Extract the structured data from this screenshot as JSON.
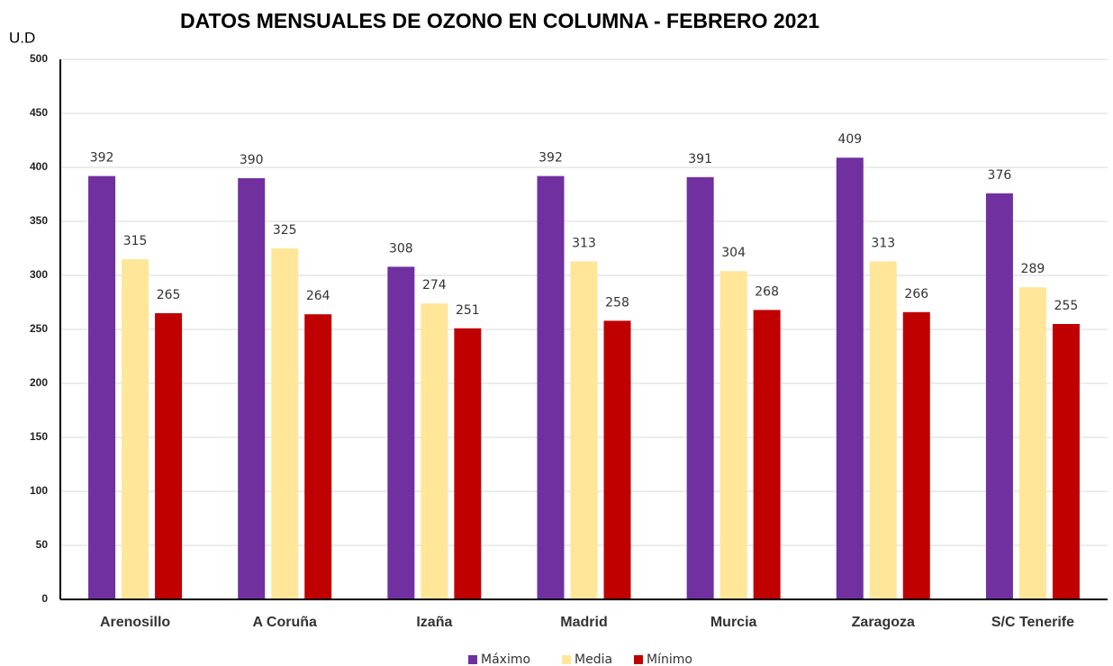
{
  "chart_data": {
    "type": "bar",
    "title": "DATOS MENSUALES DE OZONO EN COLUMNA - FEBRERO 2021",
    "y_label": "U.D",
    "categories": [
      "Arenosillo",
      "A Coruña",
      "Izaña",
      "Madrid",
      "Murcia",
      "Zaragoza",
      "S/C Tenerife"
    ],
    "series": [
      {
        "name": "Máximo",
        "color": "#7030a0",
        "values": [
          392,
          390,
          308,
          392,
          391,
          409,
          376
        ]
      },
      {
        "name": "Media",
        "color": "#ffe699",
        "values": [
          315,
          325,
          274,
          313,
          304,
          313,
          289
        ]
      },
      {
        "name": "Mínimo",
        "color": "#c00000",
        "values": [
          265,
          264,
          251,
          258,
          268,
          266,
          255
        ]
      }
    ],
    "ylim": [
      0,
      500
    ],
    "yticks": [
      0,
      50,
      100,
      150,
      200,
      250,
      300,
      350,
      400,
      450,
      500
    ],
    "grid": true,
    "legend": "bottom"
  }
}
